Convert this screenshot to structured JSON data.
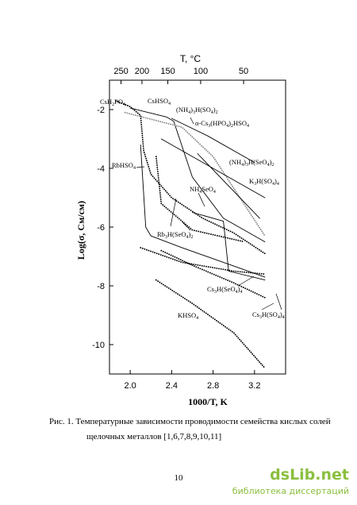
{
  "chart_data": {
    "type": "line",
    "xlabel": "1000/T, K",
    "ylabel": "Log(σ, См/см)",
    "x2label": "T, °C",
    "xlim": [
      1.8,
      3.5
    ],
    "ylim": [
      -11,
      -1
    ],
    "xticks": [
      {
        "value": 2,
        "label": "2.0"
      },
      2.4,
      2.8,
      3.2
    ],
    "yticks": [
      -2,
      -4,
      -6,
      -8,
      -10
    ],
    "x2ticks": [
      250,
      200,
      150,
      100,
      50
    ],
    "series": [
      {
        "name": "CsH2PO4",
        "color": "#000",
        "style": "dotted",
        "x": [
          1.86,
          2.0,
          2.1,
          2.13,
          2.2,
          2.4,
          2.7,
          3.0,
          3.3
        ],
        "values": [
          -1.7,
          -1.9,
          -2.2,
          -3.4,
          -4.2,
          -5.0,
          -5.7,
          -6.2,
          -6.9
        ]
      },
      {
        "name": "CsHSO4",
        "color": "#000",
        "style": "solid",
        "x": [
          2.0,
          2.35,
          2.42,
          2.6,
          2.9,
          3.3
        ],
        "values": [
          -1.95,
          -2.25,
          -2.4,
          -4.3,
          -5.7,
          -6.5
        ]
      },
      {
        "name": "(NH4)3H(SO4)2",
        "color": "#888",
        "style": "dotted",
        "x": [
          1.95,
          2.5,
          2.8,
          3.3
        ],
        "values": [
          -2.1,
          -2.6,
          -3.6,
          -6.3
        ]
      },
      {
        "name": "α-Cs3(HPO4)2HSO4",
        "color": "#000",
        "style": "solid",
        "x": [
          2.4,
          2.75,
          3.2
        ],
        "values": [
          -2.3,
          -2.9,
          -3.8
        ]
      },
      {
        "name": "(NH4)3H(SeO4)2",
        "color": "#000",
        "style": "solid",
        "x": [
          2.3,
          3.3
        ],
        "values": [
          -3.0,
          -5.0
        ]
      },
      {
        "name": "K3H(SO4)4",
        "color": "#000",
        "style": "solid",
        "x": [
          2.65,
          3.25
        ],
        "values": [
          -3.5,
          -5.7
        ]
      },
      {
        "name": "RbHSO4",
        "color": "#000",
        "style": "solid",
        "x": [
          2.1,
          2.15,
          2.2,
          2.5,
          2.9,
          3.3
        ],
        "values": [
          -3.2,
          -6.0,
          -6.3,
          -6.7,
          -7.2,
          -7.7
        ]
      },
      {
        "name": "Rb3H(SeO4)2",
        "color": "#000",
        "style": "dotted",
        "x": [
          2.25,
          2.3,
          2.6,
          3.1
        ],
        "values": [
          -3.6,
          -5.2,
          -6.1,
          -6.5
        ]
      },
      {
        "name": "NH4SeO4",
        "color": "#000",
        "style": "solid",
        "x": [
          2.6,
          2.9,
          2.95,
          3.3
        ],
        "values": [
          -5.5,
          -5.8,
          -7.5,
          -7.8
        ]
      },
      {
        "name": "Cs3H(SeO4)4",
        "color": "#000",
        "style": "dotted",
        "x": [
          2.1,
          2.5,
          3.0,
          3.3
        ],
        "values": [
          -6.7,
          -7.2,
          -7.5,
          -7.6
        ]
      },
      {
        "name": "Cs3H(SO4)4",
        "color": "#000",
        "style": "dotted",
        "x": [
          2.3,
          2.6,
          3.0,
          3.3
        ],
        "values": [
          -6.8,
          -7.3,
          -7.9,
          -8.4
        ]
      },
      {
        "name": "KHSO4",
        "color": "#000",
        "style": "dotted",
        "x": [
          2.25,
          2.6,
          3.0,
          3.3
        ],
        "values": [
          -7.8,
          -8.6,
          -9.6,
          -10.8
        ]
      }
    ]
  },
  "caption": [
    "Рис. 1. Температурные зависимости проводимости семейства кислых солей",
    "щелочных металлов [1,6,7,8,9,10,11]"
  ],
  "page_number": "10",
  "watermark": {
    "brand": "dsLib.net",
    "tagline": "библиотека диссертаций"
  }
}
